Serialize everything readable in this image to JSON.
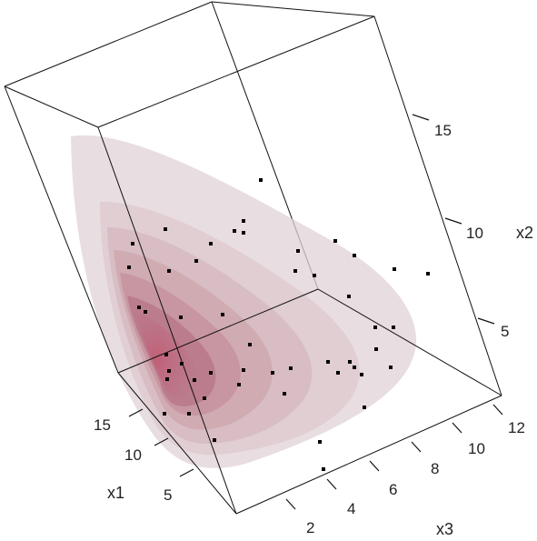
{
  "chart_data": {
    "type": "scatter",
    "title": "",
    "axes": {
      "x1": {
        "label": "x1",
        "ticks": [
          "5",
          "10",
          "15"
        ]
      },
      "x2": {
        "label": "x2",
        "ticks": [
          "5",
          "10",
          "15"
        ]
      },
      "x3": {
        "label": "x3",
        "ticks": [
          "2",
          "4",
          "6",
          "8",
          "10",
          "12"
        ]
      }
    },
    "surface_colors": [
      "#e0d2d7",
      "#d9c1c8",
      "#d2aeb8",
      "#c9999f",
      "#bf8292",
      "#b06a7d",
      "#a35068"
    ],
    "point_color": "#000000"
  }
}
